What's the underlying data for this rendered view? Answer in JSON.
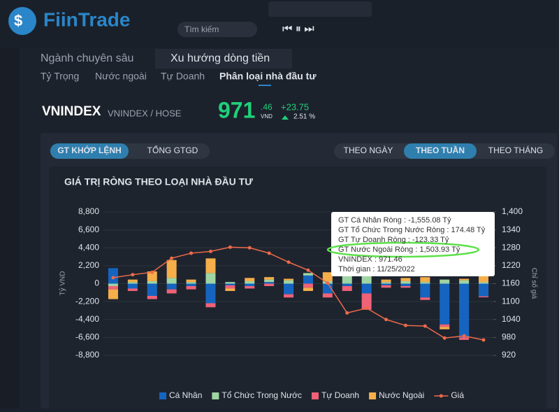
{
  "app": {
    "logo": "FiinTrade",
    "search": "Tìm kiếm"
  },
  "tabs": [
    "Ngành chuyên sâu",
    "Xu hướng dòng tiền"
  ],
  "subtabs": [
    "Tỷ Trọng",
    "Nước ngoài",
    "Tự Doanh",
    "Phân loại nhà đầu tư"
  ],
  "index": {
    "name": "VNINDEX",
    "exchange": "VNINDEX / HOSE",
    "price": "971",
    "decimals": ".46",
    "unit": "VND",
    "change": "+23.75",
    "pct": "2.51 %"
  },
  "toggles": [
    "GT KHỚP LỆNH",
    "TỔNG GTGD"
  ],
  "periods": [
    "THEO NGÀY",
    "THEO TUẦN",
    "THEO THÁNG"
  ],
  "chart_data": {
    "type": "bar-line",
    "title": "GIÁ TRỊ RÒNG THEO LOẠI NHÀ ĐẦU TƯ",
    "ylabel": "Tỷ VND",
    "y2label": "Chỉ số giá",
    "ylim": [
      -8800,
      8800
    ],
    "yticks": [
      {
        "value": -8800,
        "label": "-8,800"
      },
      {
        "value": -6600,
        "label": "-6,600"
      },
      {
        "value": -4400,
        "label": "-4,400"
      },
      {
        "value": -2200,
        "label": "-2,200"
      },
      0,
      {
        "value": 2200,
        "label": "2,200"
      },
      {
        "value": 4400,
        "label": "4,400"
      },
      {
        "value": 6600,
        "label": "6,600"
      },
      {
        "value": 8800,
        "label": "8,800"
      }
    ],
    "y2lim": [
      920,
      1400
    ],
    "y2ticks": [
      920,
      980,
      1040,
      1100,
      1160,
      1220,
      1280,
      1340,
      {
        "value": 1400,
        "label": "1,400"
      }
    ],
    "series": [
      {
        "name": "Cá Nhân",
        "color": "#1565c0",
        "values": [
          1900,
          -600,
          -1500,
          -700,
          -300,
          -2400,
          -200,
          -300,
          200,
          -1300,
          1000,
          -1200,
          -300,
          -1200,
          -200,
          -300,
          -1700,
          -5000,
          -6600,
          -1555.08
        ]
      },
      {
        "name": "Tổ Chức Trong Nước",
        "color": "#9fd4a3",
        "values": [
          -300,
          200,
          300,
          700,
          200,
          1300,
          200,
          300,
          300,
          400,
          300,
          300,
          1800,
          1000,
          200,
          300,
          200,
          500,
          400,
          174.48
        ]
      },
      {
        "name": "Tự Doanh",
        "color": "#ef6277",
        "values": [
          -400,
          -300,
          -400,
          -500,
          -400,
          -500,
          -400,
          -300,
          -300,
          -400,
          -500,
          -500,
          -600,
          -2000,
          -300,
          -200,
          -300,
          -300,
          -300,
          -123.33
        ]
      },
      {
        "name": "Nước Ngoài",
        "color": "#f5ae4a",
        "values": [
          -1200,
          300,
          1200,
          2200,
          300,
          1800,
          -300,
          400,
          300,
          200,
          -400,
          1100,
          400,
          600,
          300,
          400,
          600,
          -300,
          200,
          1503.93
        ]
      },
      {
        "name": "Giá",
        "color": "#ee6a4a",
        "axis": "y2",
        "values": [
          1180,
          1190,
          1198,
          1245,
          1262,
          1268,
          1282,
          1280,
          1262,
          1232,
          1205,
          1162,
          1062,
          1078,
          1040,
          1020,
          1018,
          978,
          985,
          971.46
        ]
      }
    ],
    "tooltip": [
      "GT Cá Nhân Ròng  : -1,555.08 Tỷ",
      "GT Tổ Chức Trong Nước Ròng : 174.48 Tỷ",
      "GT Tự Doanh Ròng : -123.33 Tỷ",
      "GT Nước Ngoài Ròng : 1,503.93 Tỷ",
      "VNINDEX : 971.46",
      "Thời gian : 11/25/2022"
    ]
  }
}
